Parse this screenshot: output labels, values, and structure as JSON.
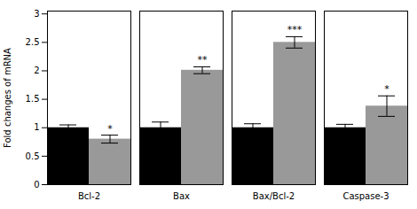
{
  "chart_data": {
    "type": "bar",
    "categories": [
      "Bcl-2",
      "Bax",
      "Bax/Bcl-2",
      "Caspase-3"
    ],
    "series": [
      {
        "color": "#000000",
        "values": [
          1.0,
          1.0,
          1.0,
          1.0
        ],
        "errors": [
          0.05,
          0.1,
          0.07,
          0.06
        ]
      },
      {
        "color": "#999999",
        "values": [
          0.8,
          2.01,
          2.5,
          1.38
        ],
        "errors": [
          0.07,
          0.06,
          0.1,
          0.18
        ],
        "annotations": [
          "*",
          "**",
          "***",
          "*"
        ]
      }
    ],
    "ylabel": "Fold changes of mRNA",
    "ylim": [
      0,
      3.05
    ],
    "yticks": [
      0,
      0.5,
      1,
      1.5,
      2,
      2.5,
      3
    ],
    "grid": false
  }
}
